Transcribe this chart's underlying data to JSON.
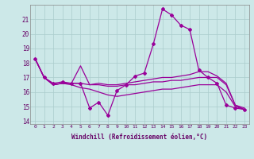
{
  "xlabel": "Windchill (Refroidissement éolien,°C)",
  "background_color": "#cce8e8",
  "grid_color": "#aacccc",
  "line_color": "#990099",
  "x_ticks": [
    0,
    1,
    2,
    3,
    4,
    5,
    6,
    7,
    8,
    9,
    10,
    11,
    12,
    13,
    14,
    15,
    16,
    17,
    18,
    19,
    20,
    21,
    22,
    23
  ],
  "y_ticks": [
    14,
    15,
    16,
    17,
    18,
    19,
    20,
    21
  ],
  "ylim": [
    13.8,
    22.0
  ],
  "xlim": [
    -0.5,
    23.5
  ],
  "series": [
    {
      "x": [
        0,
        1,
        2,
        3,
        4,
        5,
        6,
        7,
        8,
        9,
        10,
        11,
        12,
        13,
        14,
        15,
        16,
        17,
        18,
        19,
        20,
        21,
        22,
        23
      ],
      "y": [
        18.3,
        17.0,
        16.6,
        16.7,
        16.6,
        16.6,
        14.9,
        15.3,
        14.4,
        16.1,
        16.5,
        17.1,
        17.3,
        19.3,
        21.7,
        21.3,
        20.6,
        20.3,
        17.5,
        17.0,
        16.6,
        15.1,
        14.9,
        14.8
      ],
      "marker": true
    },
    {
      "x": [
        0,
        1,
        2,
        3,
        4,
        5,
        6,
        7,
        8,
        9,
        10,
        11,
        12,
        13,
        14,
        15,
        16,
        17,
        18,
        19,
        20,
        21,
        22,
        23
      ],
      "y": [
        18.3,
        17.0,
        16.5,
        16.6,
        16.6,
        17.8,
        16.5,
        16.6,
        16.5,
        16.5,
        16.6,
        16.7,
        16.8,
        16.9,
        17.0,
        17.0,
        17.1,
        17.2,
        17.4,
        17.4,
        17.1,
        16.6,
        15.1,
        14.9
      ],
      "marker": false
    },
    {
      "x": [
        0,
        1,
        2,
        3,
        4,
        5,
        6,
        7,
        8,
        9,
        10,
        11,
        12,
        13,
        14,
        15,
        16,
        17,
        18,
        19,
        20,
        21,
        22,
        23
      ],
      "y": [
        18.3,
        17.0,
        16.5,
        16.6,
        16.6,
        16.6,
        16.5,
        16.5,
        16.4,
        16.4,
        16.5,
        16.5,
        16.6,
        16.7,
        16.7,
        16.8,
        16.8,
        16.9,
        17.0,
        17.0,
        17.0,
        16.5,
        15.1,
        14.8
      ],
      "marker": false
    },
    {
      "x": [
        0,
        1,
        2,
        3,
        4,
        5,
        6,
        7,
        8,
        9,
        10,
        11,
        12,
        13,
        14,
        15,
        16,
        17,
        18,
        19,
        20,
        21,
        22,
        23
      ],
      "y": [
        18.3,
        17.0,
        16.5,
        16.6,
        16.5,
        16.3,
        16.2,
        16.0,
        15.8,
        15.7,
        15.8,
        15.9,
        16.0,
        16.1,
        16.2,
        16.2,
        16.3,
        16.4,
        16.5,
        16.5,
        16.5,
        16.0,
        15.0,
        14.8
      ],
      "marker": false
    }
  ]
}
